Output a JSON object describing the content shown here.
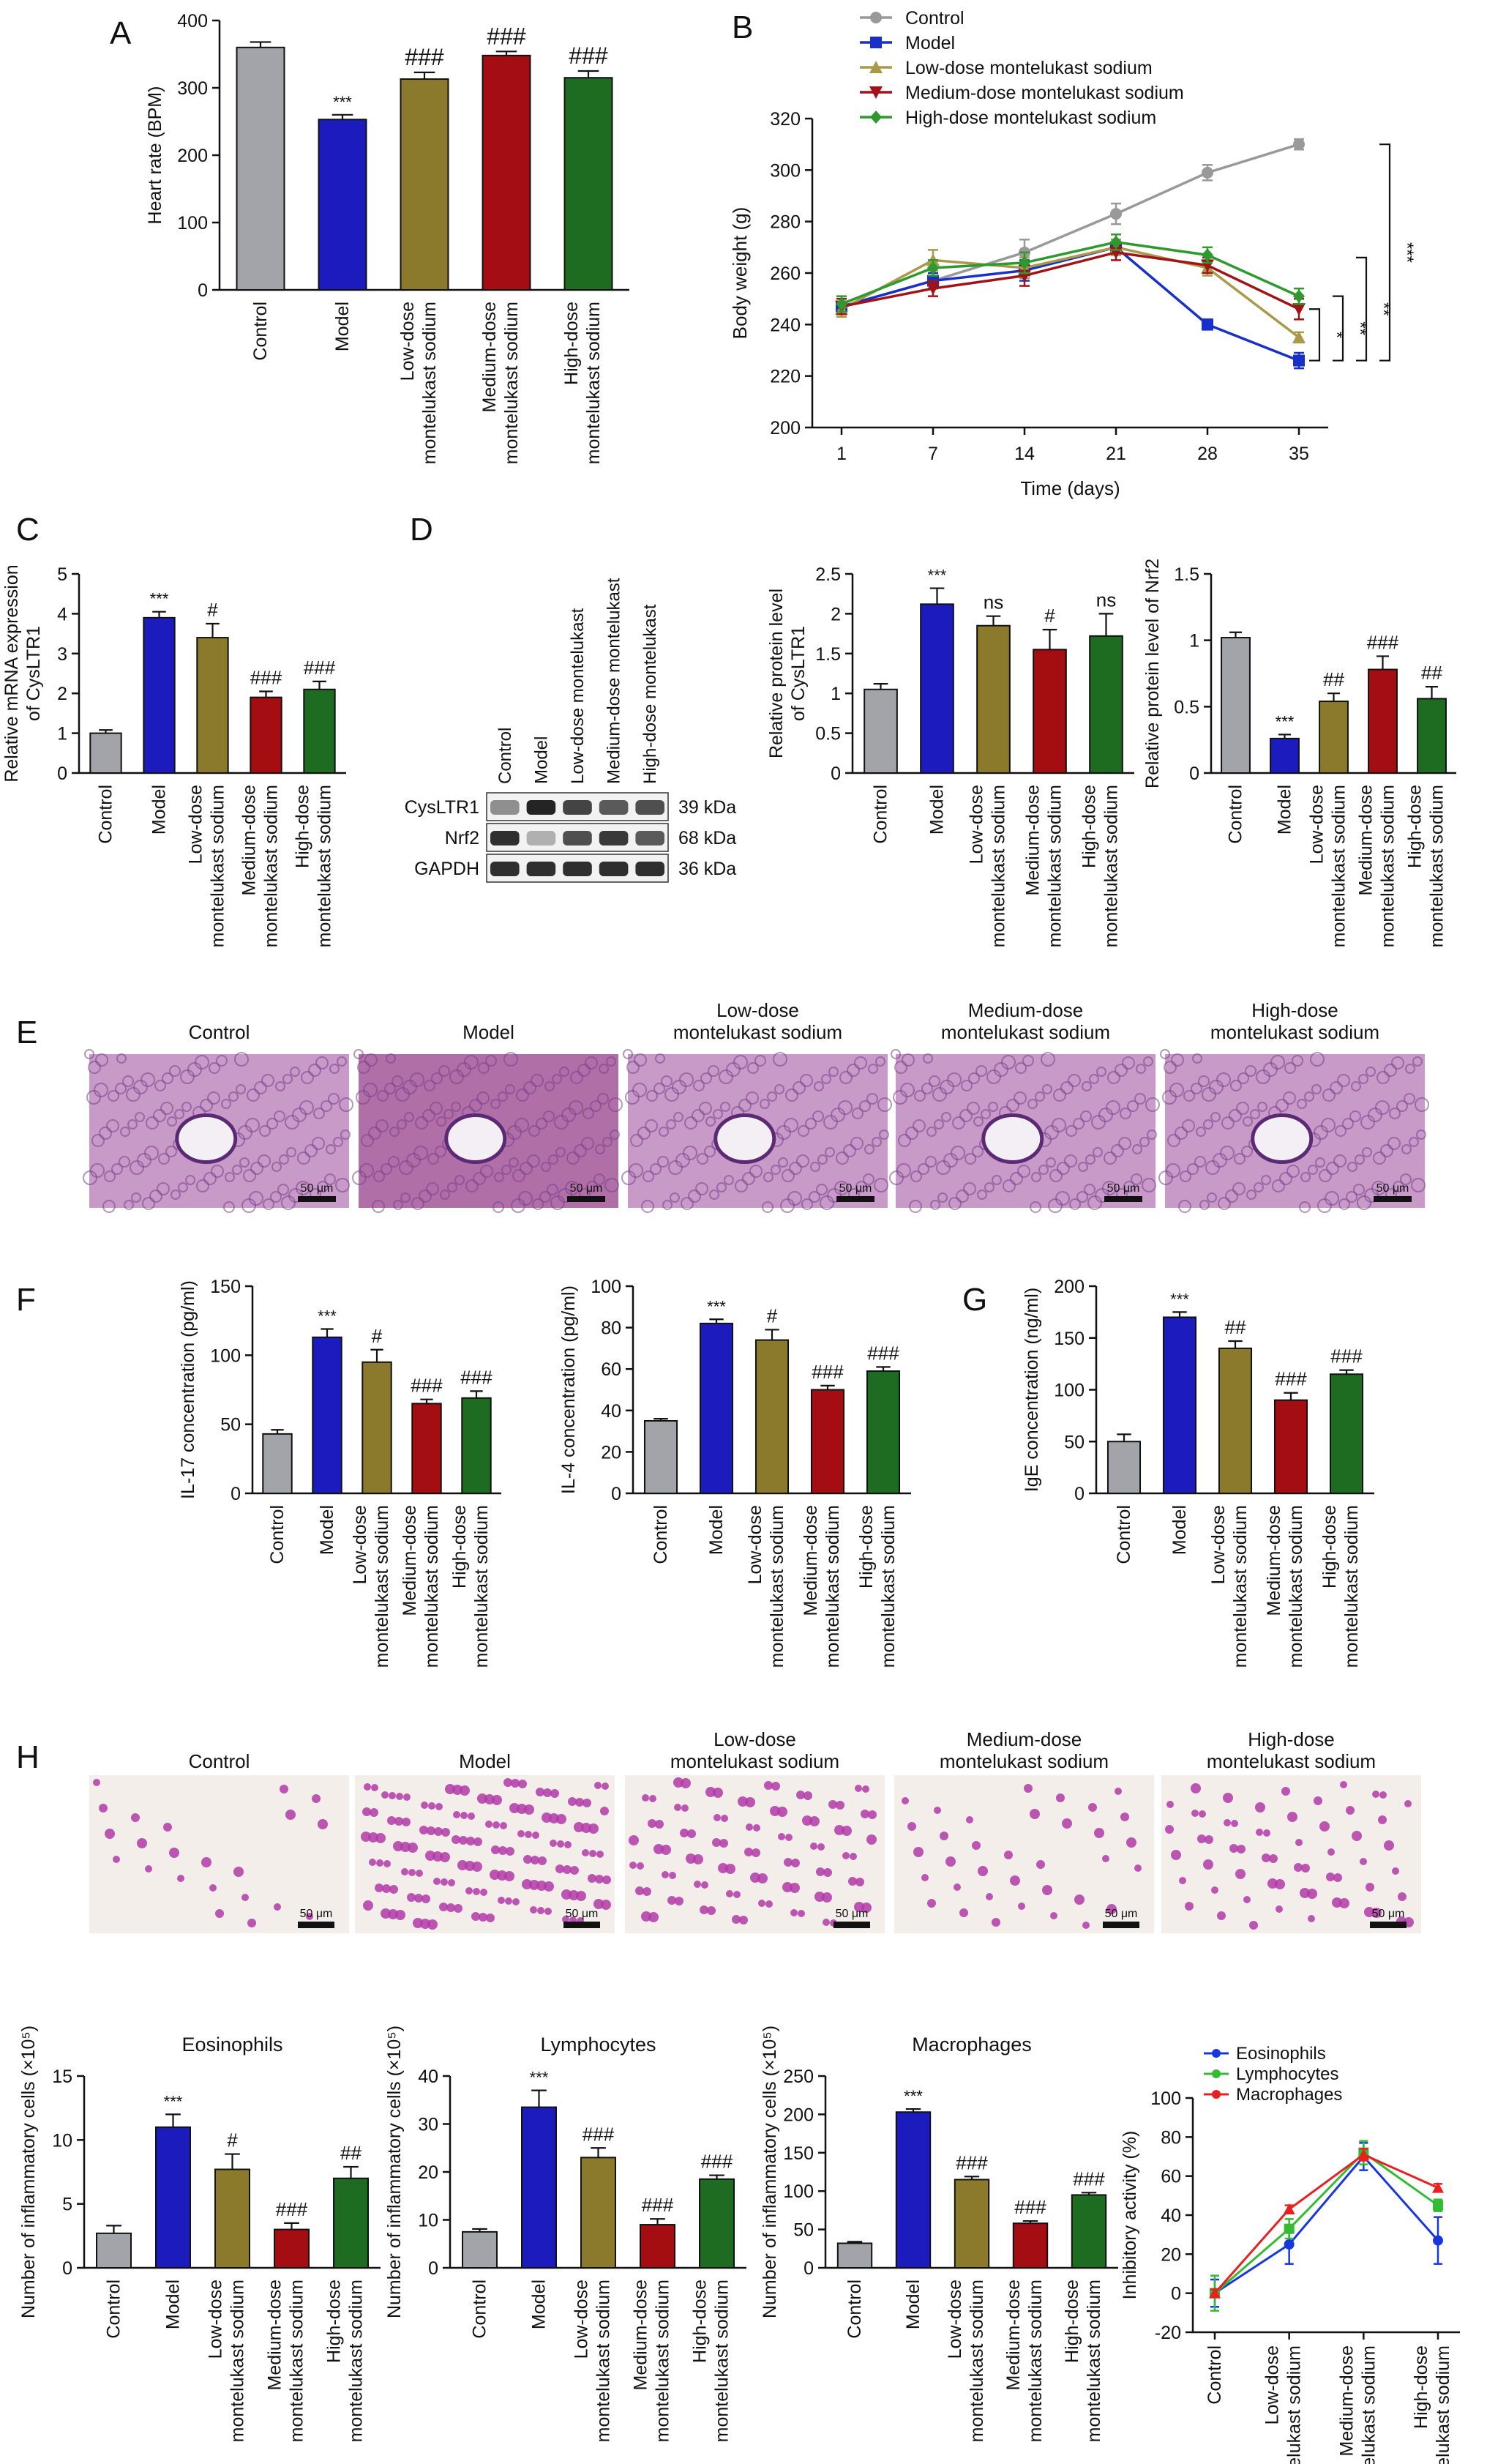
{
  "colors": {
    "control": "#a3a3aa",
    "model": "#1c1cbe",
    "low": "#8c7a2c",
    "medium": "#a40d12",
    "high": "#1d6c22",
    "line_control": "#999999",
    "line_model": "#1830c8",
    "line_low": "#a89a4a",
    "line_medium": "#a01418",
    "line_high": "#2e9a2e",
    "eos": "#1836e0",
    "lym": "#33bb33",
    "mac": "#e82020"
  },
  "group_labels": {
    "control": [
      "Control"
    ],
    "model": [
      "Model"
    ],
    "low": [
      "Low-dose",
      "montelukast sodium"
    ],
    "medium": [
      "Medium-dose",
      "montelukast sodium"
    ],
    "high": [
      "High-dose",
      "montelukast sodium"
    ]
  },
  "panel_letters": [
    "A",
    "B",
    "C",
    "D",
    "E",
    "F",
    "G",
    "H"
  ],
  "histology_titles": [
    [
      "Control"
    ],
    [
      "Model"
    ],
    [
      "Low-dose",
      "montelukast sodium"
    ],
    [
      "Medium-dose",
      "montelukast sodium"
    ],
    [
      "High-dose",
      "montelukast sodium"
    ]
  ],
  "scale_bar_label": "50 μm",
  "western": {
    "lane_labels": [
      "Control",
      "Model",
      "Low-dose montelukast",
      "Medium-dose montelukast",
      "High-dose montelukast"
    ],
    "rows": [
      {
        "protein": "CysLTR1",
        "kda": "39 kDa",
        "intensity": [
          0.45,
          0.95,
          0.8,
          0.7,
          0.75
        ]
      },
      {
        "protein": "Nrf2",
        "kda": "68 kDa",
        "intensity": [
          0.9,
          0.3,
          0.75,
          0.85,
          0.7
        ]
      },
      {
        "protein": "GAPDH",
        "kda": "36 kDa",
        "intensity": [
          0.9,
          0.9,
          0.9,
          0.9,
          0.9
        ]
      }
    ]
  },
  "chart_data": [
    {
      "id": "A",
      "type": "bar",
      "ylabel": "Heart rate (BPM)",
      "ylim": [
        0,
        400
      ],
      "yticks": [
        0,
        100,
        200,
        300,
        400
      ],
      "values": [
        360,
        253,
        313,
        348,
        315
      ],
      "errors": [
        8,
        7,
        10,
        6,
        10
      ],
      "annotations": [
        "",
        "***",
        "###",
        "###",
        "###"
      ]
    },
    {
      "id": "B",
      "type": "line",
      "xlabel": "Time (days)",
      "ylabel": "Body weight (g)",
      "ylim": [
        200,
        320
      ],
      "yticks": [
        200,
        220,
        240,
        260,
        280,
        300,
        320
      ],
      "x": [
        1,
        7,
        14,
        21,
        28,
        35
      ],
      "legend": [
        "Control",
        "Model",
        "Low-dose montelukast sodium",
        "Medium-dose montelukast sodium",
        "High-dose montelukast sodium"
      ],
      "series": [
        {
          "name": "Control",
          "values": [
            247,
            257,
            268,
            283,
            299,
            310
          ],
          "errors": [
            3,
            3,
            5,
            4,
            3,
            2
          ]
        },
        {
          "name": "Model",
          "values": [
            247,
            257,
            261,
            270,
            240,
            226
          ],
          "errors": [
            3,
            3,
            4,
            3,
            2,
            3
          ]
        },
        {
          "name": "Low-dose montelukast sodium",
          "values": [
            246,
            265,
            262,
            270,
            262,
            235
          ],
          "errors": [
            3,
            4,
            4,
            3,
            3,
            2
          ]
        },
        {
          "name": "Medium-dose montelukast sodium",
          "values": [
            247,
            254,
            259,
            268,
            263,
            246
          ],
          "errors": [
            3,
            3,
            4,
            3,
            3,
            4
          ]
        },
        {
          "name": "High-dose montelukast sodium",
          "values": [
            248,
            262,
            264,
            272,
            267,
            251
          ],
          "errors": [
            3,
            3,
            4,
            3,
            3,
            3
          ]
        }
      ],
      "significance": [
        "*",
        "**",
        "**",
        "***"
      ]
    },
    {
      "id": "C",
      "type": "bar",
      "ylabel": "Relative mRNA expression of CysLTR1",
      "ylim": [
        0,
        5
      ],
      "yticks": [
        0,
        1,
        2,
        3,
        4,
        5
      ],
      "values": [
        1.0,
        3.9,
        3.4,
        1.9,
        2.1
      ],
      "errors": [
        0.08,
        0.15,
        0.35,
        0.15,
        0.2
      ],
      "annotations": [
        "",
        "***",
        "#",
        "###",
        "###"
      ]
    },
    {
      "id": "D1",
      "type": "bar",
      "ylabel": "Relative protein level of CysLTR1",
      "ylim": [
        0,
        2.5
      ],
      "yticks": [
        0,
        0.5,
        1.0,
        1.5,
        2.0,
        2.5
      ],
      "values": [
        1.05,
        2.12,
        1.85,
        1.55,
        1.72
      ],
      "errors": [
        0.07,
        0.2,
        0.12,
        0.25,
        0.28
      ],
      "annotations": [
        "",
        "***",
        "ns",
        "#",
        "ns"
      ]
    },
    {
      "id": "D2",
      "type": "bar",
      "ylabel": "Relative protein level of Nrf2",
      "ylim": [
        0,
        1.5
      ],
      "yticks": [
        0,
        0.5,
        1.0,
        1.5
      ],
      "values": [
        1.02,
        0.26,
        0.54,
        0.78,
        0.56
      ],
      "errors": [
        0.04,
        0.03,
        0.06,
        0.1,
        0.09
      ],
      "annotations": [
        "",
        "***",
        "##",
        "###",
        "##"
      ]
    },
    {
      "id": "F1",
      "type": "bar",
      "ylabel": "IL-17 concentration (pg/ml)",
      "ylim": [
        0,
        150
      ],
      "yticks": [
        0,
        50,
        100,
        150
      ],
      "values": [
        43,
        113,
        95,
        65,
        69
      ],
      "errors": [
        3,
        6,
        9,
        3,
        5
      ],
      "annotations": [
        "",
        "***",
        "#",
        "###",
        "###"
      ]
    },
    {
      "id": "F2",
      "type": "bar",
      "ylabel": "IL-4 concentration (pg/ml)",
      "ylim": [
        0,
        100
      ],
      "yticks": [
        0,
        20,
        40,
        60,
        80,
        100
      ],
      "values": [
        35,
        82,
        74,
        50,
        59
      ],
      "errors": [
        1,
        2,
        5,
        2,
        2
      ],
      "annotations": [
        "",
        "***",
        "#",
        "###",
        "###"
      ]
    },
    {
      "id": "G",
      "type": "bar",
      "ylabel": "IgE concentration (ng/ml)",
      "ylim": [
        0,
        200
      ],
      "yticks": [
        0,
        50,
        100,
        150,
        200
      ],
      "values": [
        50,
        170,
        140,
        90,
        115
      ],
      "errors": [
        7,
        5,
        7,
        7,
        4
      ],
      "annotations": [
        "",
        "***",
        "##",
        "###",
        "###"
      ]
    },
    {
      "id": "H1",
      "type": "bar",
      "title": "Eosinophils",
      "ylabel": "Number of inflammatory cells (×10⁵)",
      "ylim": [
        0,
        15
      ],
      "yticks": [
        0,
        5,
        10,
        15
      ],
      "values": [
        2.7,
        11.0,
        7.7,
        3.0,
        7.0
      ],
      "errors": [
        0.6,
        1.0,
        1.2,
        0.5,
        0.9
      ],
      "annotations": [
        "",
        "***",
        "#",
        "###",
        "##"
      ]
    },
    {
      "id": "H2",
      "type": "bar",
      "title": "Lymphocytes",
      "ylabel": "Number of inflammatory cells (×10⁵)",
      "ylim": [
        0,
        40
      ],
      "yticks": [
        0,
        10,
        20,
        30,
        40
      ],
      "values": [
        7.5,
        33.5,
        23,
        9,
        18.5
      ],
      "errors": [
        0.6,
        3.5,
        2.0,
        1.2,
        0.8
      ],
      "annotations": [
        "",
        "***",
        "###",
        "###",
        "###"
      ]
    },
    {
      "id": "H3",
      "type": "bar",
      "title": "Macrophages",
      "ylabel": "Number of inflammatory cells (×10⁵)",
      "ylim": [
        0,
        250
      ],
      "yticks": [
        0,
        50,
        100,
        150,
        200,
        250
      ],
      "values": [
        32,
        203,
        115,
        58,
        95
      ],
      "errors": [
        2,
        4,
        4,
        3,
        3
      ],
      "annotations": [
        "",
        "***",
        "###",
        "###",
        "###"
      ]
    },
    {
      "id": "H4",
      "type": "line",
      "ylabel": "Inhibitory activity (%)",
      "ylim": [
        -20,
        100
      ],
      "yticks": [
        -20,
        0,
        20,
        40,
        60,
        80,
        100
      ],
      "categories": [
        [
          "Control"
        ],
        [
          "Low-dose",
          "montelukast sodium"
        ],
        [
          "Medium-dose",
          "montelukast sodium"
        ],
        [
          "High-dose",
          "montelukast sodium"
        ]
      ],
      "legend": [
        "Eosinophils",
        "Lymphocytes",
        "Macrophages"
      ],
      "series": [
        {
          "name": "Eosinophils",
          "values": [
            0,
            25,
            70,
            27
          ],
          "errors": [
            7,
            10,
            7,
            12
          ]
        },
        {
          "name": "Lymphocytes",
          "values": [
            0,
            33,
            72,
            45
          ],
          "errors": [
            9,
            5,
            6,
            3
          ]
        },
        {
          "name": "Macrophages",
          "values": [
            0,
            43,
            71,
            54
          ],
          "errors": [
            2,
            2,
            3,
            2
          ]
        }
      ]
    }
  ]
}
